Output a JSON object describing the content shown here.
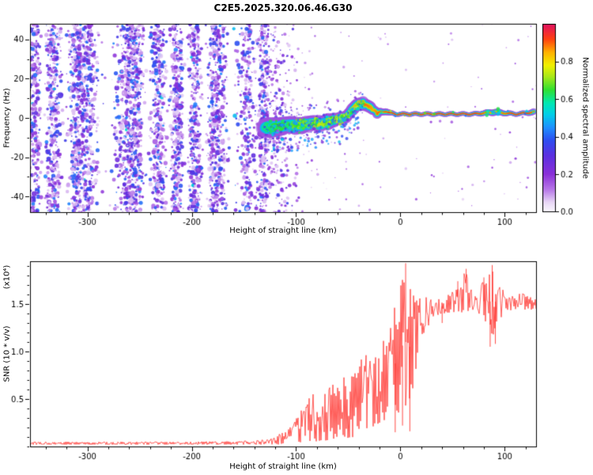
{
  "title": "C2E5.2025.320.06.46.G30",
  "chart_data": [
    {
      "type": "heatmap",
      "panel": "spectrogram",
      "xlabel": "Height of straight line (km)",
      "ylabel": "Frequency (Hz)",
      "xlim": [
        -355,
        130
      ],
      "ylim": [
        -48,
        48
      ],
      "xticks": [
        -300,
        -200,
        -100,
        0,
        100
      ],
      "yticks": [
        -40,
        -20,
        0,
        20,
        40
      ],
      "colorbar": {
        "label": "Normalized spectral amplitude",
        "ticks": [
          "0.0",
          "0.2",
          "0.4",
          "0.6",
          "0.8"
        ],
        "tick_values": [
          0,
          0.2,
          0.4,
          0.6,
          0.8
        ],
        "range": [
          0,
          1
        ]
      },
      "colormap": [
        [
          0.0,
          "#fbf8fe"
        ],
        [
          0.05,
          "#e8d7f6"
        ],
        [
          0.12,
          "#b675e8"
        ],
        [
          0.2,
          "#8a2fd8"
        ],
        [
          0.3,
          "#5b2fe0"
        ],
        [
          0.38,
          "#2e4df0"
        ],
        [
          0.45,
          "#1e90ff"
        ],
        [
          0.52,
          "#00d0e8"
        ],
        [
          0.58,
          "#00e8b0"
        ],
        [
          0.65,
          "#30e030"
        ],
        [
          0.72,
          "#a8e818"
        ],
        [
          0.78,
          "#f0f000"
        ],
        [
          0.85,
          "#ffb000"
        ],
        [
          0.92,
          "#ff4010"
        ],
        [
          1.0,
          "#e01060"
        ]
      ],
      "noise_field": {
        "dense_x_end": -128,
        "sparse_x_end": -95,
        "amp_range": [
          0.05,
          0.45
        ]
      },
      "signal_trace": {
        "x": [
          -130,
          -120,
          -110,
          -100,
          -90,
          -80,
          -70,
          -62,
          -55,
          -50,
          -45,
          -40,
          -35,
          -30,
          -26,
          -22,
          -18,
          -14,
          -10,
          -5,
          0,
          10,
          20,
          30,
          40,
          50,
          60,
          70,
          80,
          90,
          100,
          110,
          120,
          128
        ],
        "freq": [
          -5,
          -4.5,
          -3.5,
          -4,
          -3,
          -3,
          -2,
          -1,
          0,
          2,
          5,
          7,
          7.5,
          6,
          4,
          2.5,
          3,
          3.5,
          2.5,
          2,
          2,
          2,
          2,
          2,
          2,
          2,
          2,
          2,
          2.5,
          3,
          2.5,
          2,
          2.5,
          3
        ],
        "spread": [
          4,
          4,
          3.5,
          3.5,
          3,
          3,
          3,
          2.5,
          2.5,
          2.5,
          2.5,
          2.5,
          2.5,
          2.5,
          2,
          2,
          1.5,
          1.5,
          1.2,
          1,
          1,
          1,
          1,
          1,
          1,
          1,
          1,
          1,
          1.2,
          1.5,
          1.2,
          1,
          1,
          1.5
        ],
        "core_amp": [
          0.55,
          0.6,
          0.6,
          0.65,
          0.65,
          0.7,
          0.7,
          0.7,
          0.75,
          0.8,
          0.85,
          0.9,
          0.9,
          0.88,
          0.85,
          0.9,
          0.9,
          0.92,
          0.95,
          0.95,
          0.95,
          0.95,
          0.95,
          0.95,
          0.95,
          0.95,
          0.95,
          0.95,
          0.9,
          0.85,
          0.9,
          0.95,
          0.95,
          0.9
        ]
      }
    },
    {
      "type": "line",
      "panel": "snr",
      "xlabel": "Height of straight line (km)",
      "ylabel": "SNR (10 * v/v)",
      "scale_label": "(x10⁴)",
      "color": "#ff2b25",
      "xlim": [
        -355,
        130
      ],
      "ylim": [
        0,
        1.95
      ],
      "xticks": [
        -300,
        -200,
        -100,
        0,
        100
      ],
      "ytick_values": [
        0.5,
        1.0,
        1.5
      ],
      "ytick_labels": [
        "0.5",
        "1.0",
        "1.5"
      ],
      "envelope": {
        "x": [
          -355,
          -200,
          -140,
          -120,
          -105,
          -95,
          -85,
          -75,
          -65,
          -55,
          -45,
          -35,
          -28,
          -20,
          -12,
          -6,
          0,
          4,
          8,
          12,
          16,
          22,
          30,
          40,
          55,
          63,
          70,
          80,
          88,
          95,
          105,
          115,
          130
        ],
        "lo": [
          0.02,
          0.02,
          0.02,
          0.02,
          0.03,
          0.04,
          0.05,
          0.06,
          0.06,
          0.08,
          0.1,
          0.15,
          0.2,
          0.25,
          0.3,
          0.25,
          0.3,
          0.35,
          0.3,
          0.6,
          0.9,
          1.15,
          1.35,
          1.4,
          1.42,
          1.38,
          1.42,
          1.3,
          1.15,
          1.35,
          1.42,
          1.44,
          1.44
        ],
        "hi": [
          0.05,
          0.05,
          0.06,
          0.1,
          0.22,
          0.38,
          0.55,
          0.6,
          0.65,
          0.72,
          0.85,
          0.95,
          1.0,
          1.1,
          1.2,
          1.45,
          1.7,
          1.9,
          1.75,
          1.65,
          1.6,
          1.58,
          1.56,
          1.55,
          1.72,
          1.86,
          1.56,
          1.76,
          1.9,
          1.7,
          1.58,
          1.62,
          1.56
        ]
      },
      "spikes": [
        {
          "x": 5,
          "y": 1.93
        },
        {
          "x": 63,
          "y": 1.87
        },
        {
          "x": 88,
          "y": 1.91
        },
        {
          "x": 80,
          "y": 1.78
        },
        {
          "x": 55,
          "y": 1.74
        }
      ],
      "dips": [
        {
          "x": -5,
          "y": 0.15
        },
        {
          "x": 2,
          "y": 0.22
        },
        {
          "x": 9,
          "y": 0.16
        },
        {
          "x": 86,
          "y": 1.05
        },
        {
          "x": 91,
          "y": 1.08
        },
        {
          "x": 40,
          "y": 1.3
        }
      ]
    }
  ]
}
